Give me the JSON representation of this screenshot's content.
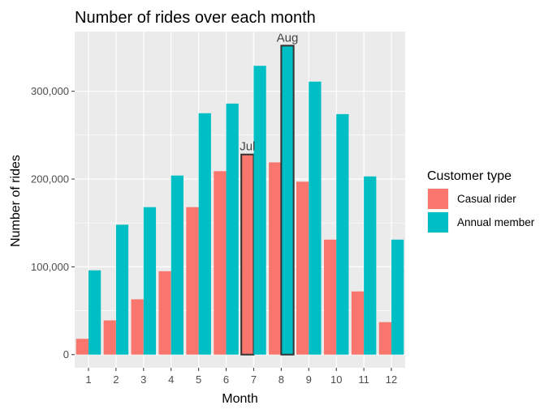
{
  "chart_data": {
    "type": "bar",
    "title": "Number of rides over each month",
    "xlabel": "Month",
    "ylabel": "Number of rides",
    "categories": [
      "1",
      "2",
      "3",
      "4",
      "5",
      "6",
      "7",
      "8",
      "9",
      "10",
      "11",
      "12"
    ],
    "series": [
      {
        "name": "Casual rider",
        "color": "#F8766D",
        "values": [
          18000,
          39000,
          63000,
          95000,
          168000,
          209000,
          228000,
          219000,
          197000,
          131000,
          72000,
          37000
        ]
      },
      {
        "name": "Annual member",
        "color": "#00BFC4",
        "values": [
          96000,
          148000,
          168000,
          204000,
          275000,
          286000,
          329000,
          352000,
          311000,
          274000,
          203000,
          131000
        ]
      }
    ],
    "ylim": [
      -15000,
      368000
    ],
    "yticks": [
      0,
      100000,
      200000,
      300000
    ],
    "ytick_labels": [
      "0",
      "100,000",
      "200,000",
      "300,000"
    ],
    "grid": true,
    "legend": {
      "title": "Customer type",
      "placement": "right"
    },
    "annotations": [
      {
        "text": "Jul",
        "category": "7",
        "series": "Casual rider"
      },
      {
        "text": "Aug",
        "category": "8",
        "series": "Annual member"
      }
    ],
    "panel_background": "#EBEBEB",
    "grid_color": "#FFFFFF"
  }
}
